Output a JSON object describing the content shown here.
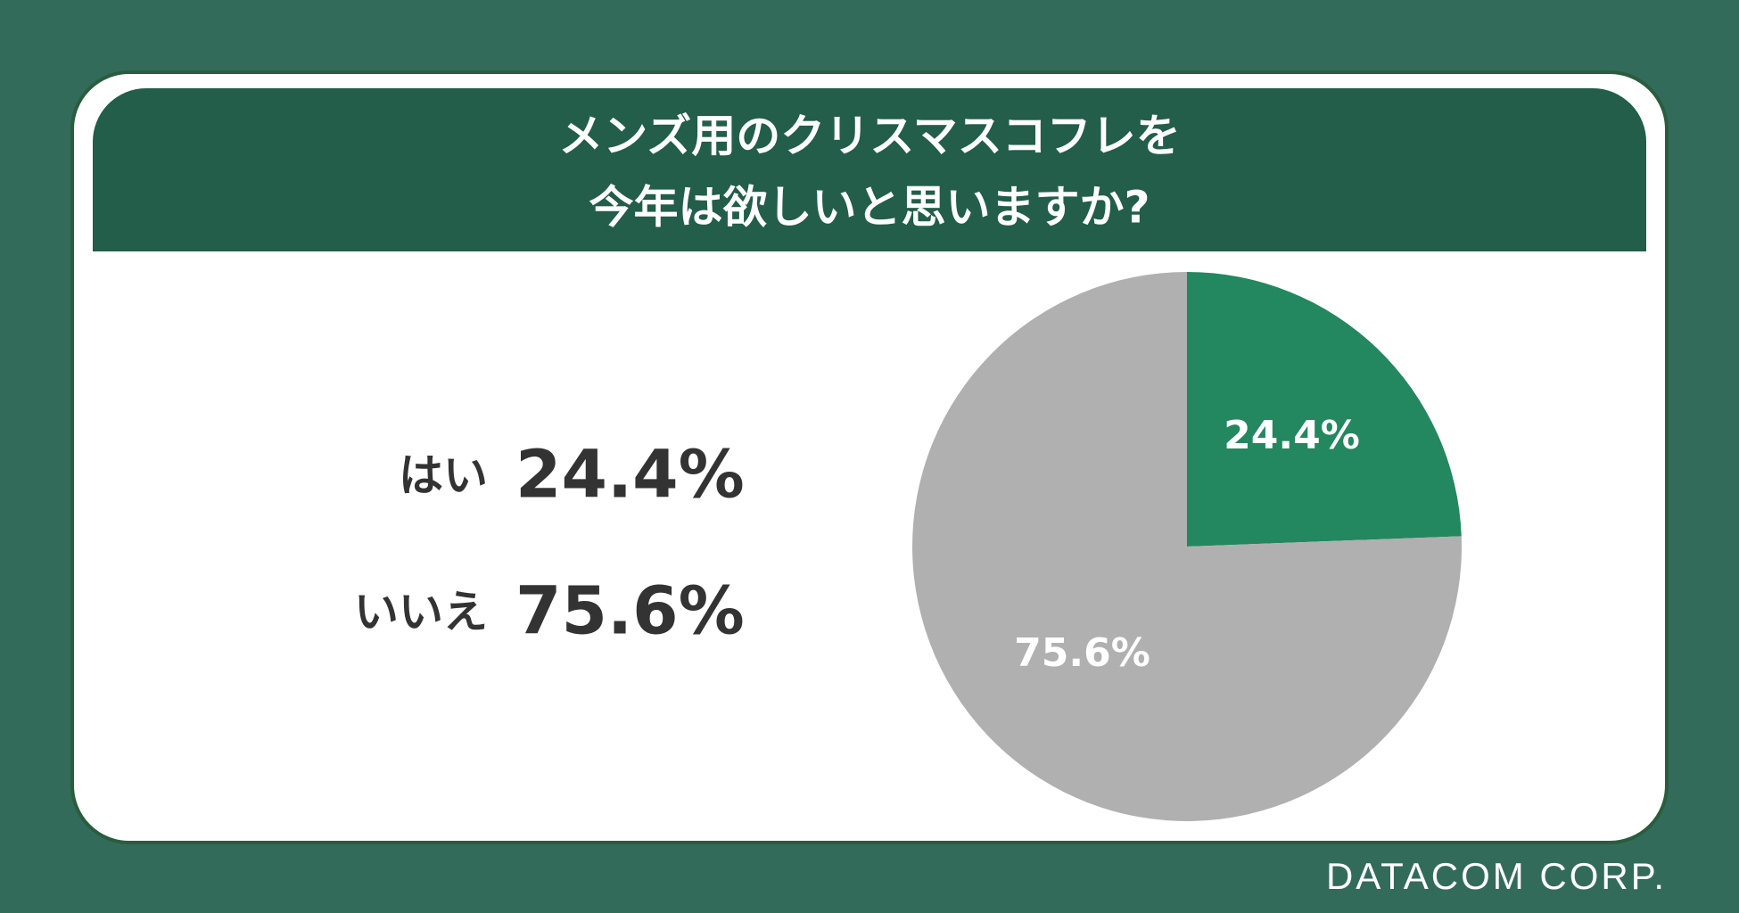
{
  "chart_data": {
    "type": "pie",
    "title": [
      "メンズ用のクリスマスコフレを",
      "今年は欲しいと思いますか?"
    ],
    "categories": [
      "はい",
      "いいえ"
    ],
    "values": [
      24.4,
      75.6
    ],
    "value_labels": [
      "24.4%",
      "75.6%"
    ],
    "colors": [
      "#23875f",
      "#b0b0b0"
    ],
    "source": "DATACOM CORP."
  }
}
